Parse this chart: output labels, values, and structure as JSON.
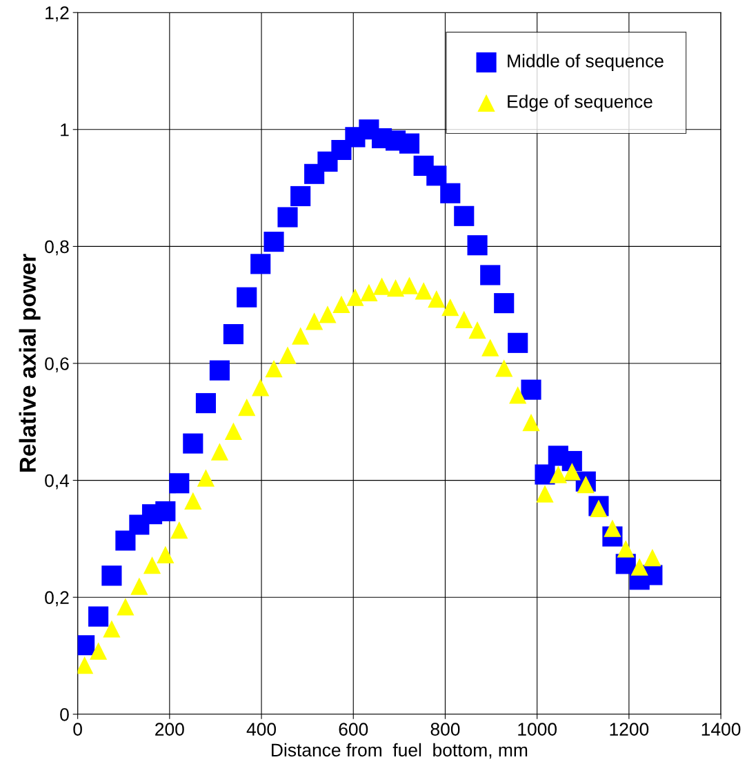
{
  "chart_data": {
    "type": "scatter",
    "xlabel": "Distance from  fuel  bottom, mm",
    "ylabel": "Relative axial power",
    "xlim": [
      0,
      1400
    ],
    "xticks": [
      0,
      200,
      400,
      600,
      800,
      1000,
      1200,
      1400
    ],
    "ylim": [
      0,
      1.2
    ],
    "yticks": [
      0,
      {
        "value": 0.2,
        "label": "0,2"
      },
      {
        "value": 0.4,
        "label": "0,4"
      },
      {
        "value": 0.6,
        "label": "0,6"
      },
      {
        "value": 0.8,
        "label": "0,8"
      },
      1,
      {
        "value": 1.2,
        "label": "1,2"
      }
    ],
    "grid": true,
    "legend": "top right",
    "series": [
      {
        "name": "Middle of sequence",
        "color": "#0000ff",
        "marker": "square",
        "x": [
          15,
          45,
          74,
          104,
          134,
          162,
          191,
          221,
          251,
          279,
          309,
          339,
          368,
          398,
          427,
          457,
          485,
          515,
          544,
          574,
          604,
          634,
          662,
          692,
          722,
          753,
          781,
          811,
          841,
          870,
          898,
          928,
          958,
          987,
          1017,
          1046,
          1076,
          1106,
          1134,
          1164,
          1193,
          1223,
          1251
        ],
        "values": [
          0.118,
          0.167,
          0.237,
          0.297,
          0.324,
          0.342,
          0.347,
          0.395,
          0.463,
          0.532,
          0.588,
          0.65,
          0.713,
          0.77,
          0.808,
          0.85,
          0.886,
          0.924,
          0.945,
          0.965,
          0.987,
          1.0,
          0.985,
          0.981,
          0.976,
          0.938,
          0.921,
          0.891,
          0.852,
          0.802,
          0.751,
          0.703,
          0.635,
          0.555,
          0.41,
          0.442,
          0.433,
          0.398,
          0.356,
          0.304,
          0.257,
          0.23,
          0.238
        ]
      },
      {
        "name": "Edge of sequence",
        "color": "#ffff00",
        "marker": "triangle",
        "x": [
          15,
          45,
          74,
          104,
          134,
          162,
          191,
          221,
          251,
          279,
          309,
          339,
          368,
          398,
          427,
          457,
          485,
          515,
          544,
          574,
          604,
          634,
          662,
          692,
          722,
          753,
          781,
          811,
          841,
          870,
          898,
          928,
          958,
          987,
          1017,
          1046,
          1076,
          1106,
          1134,
          1164,
          1193,
          1223,
          1251
        ],
        "values": [
          0.084,
          0.108,
          0.146,
          0.184,
          0.219,
          0.255,
          0.273,
          0.315,
          0.365,
          0.404,
          0.449,
          0.484,
          0.525,
          0.559,
          0.591,
          0.614,
          0.647,
          0.672,
          0.684,
          0.701,
          0.713,
          0.721,
          0.732,
          0.729,
          0.733,
          0.724,
          0.71,
          0.696,
          0.675,
          0.657,
          0.627,
          0.592,
          0.546,
          0.499,
          0.377,
          0.41,
          0.415,
          0.393,
          0.352,
          0.318,
          0.283,
          0.252,
          0.268
        ]
      }
    ]
  }
}
